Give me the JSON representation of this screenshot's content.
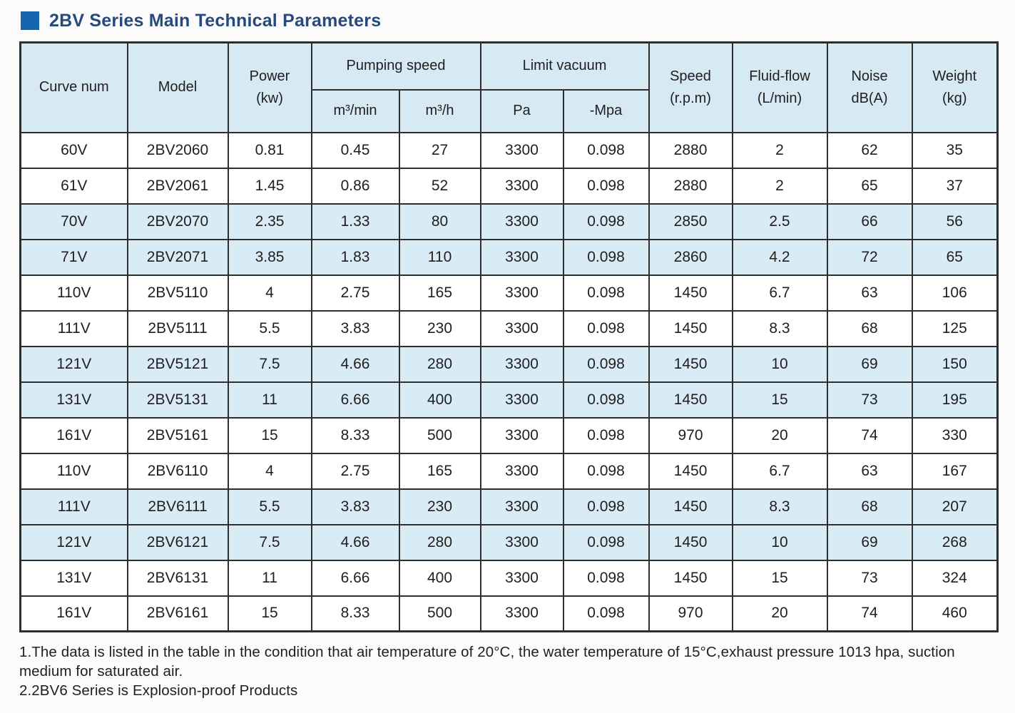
{
  "title": "2BV Series Main Technical Parameters",
  "colors": {
    "title_text": "#27497c",
    "title_bullet": "#1566ae",
    "header_fill": "#d7e9f3",
    "stripe_fill": "#d9ebf5",
    "border": "#2e2e2e"
  },
  "table": {
    "headers": {
      "curve_num": "Curve num",
      "model": "Model",
      "power_l1": "Power",
      "power_l2": "(kw)",
      "pumping_speed": "Pumping speed",
      "unit_m3min": "m³/min",
      "unit_m3h": "m³/h",
      "limit_vacuum": "Limit vacuum",
      "unit_pa": "Pa",
      "unit_mpa": "-Mpa",
      "speed_l1": "Speed",
      "speed_l2": "(r.p.m)",
      "fluid_l1": "Fluid-flow",
      "fluid_l2": "(L/min)",
      "noise_l1": "Noise",
      "noise_l2": "dB(A)",
      "weight_l1": "Weight",
      "weight_l2": "(kg)"
    },
    "rows": [
      [
        "60V",
        "2BV2060",
        "0.81",
        "0.45",
        "27",
        "3300",
        "0.098",
        "2880",
        "2",
        "62",
        "35"
      ],
      [
        "61V",
        "2BV2061",
        "1.45",
        "0.86",
        "52",
        "3300",
        "0.098",
        "2880",
        "2",
        "65",
        "37"
      ],
      [
        "70V",
        "2BV2070",
        "2.35",
        "1.33",
        "80",
        "3300",
        "0.098",
        "2850",
        "2.5",
        "66",
        "56"
      ],
      [
        "71V",
        "2BV2071",
        "3.85",
        "1.83",
        "110",
        "3300",
        "0.098",
        "2860",
        "4.2",
        "72",
        "65"
      ],
      [
        "110V",
        "2BV5110",
        "4",
        "2.75",
        "165",
        "3300",
        "0.098",
        "1450",
        "6.7",
        "63",
        "106"
      ],
      [
        "111V",
        "2BV5111",
        "5.5",
        "3.83",
        "230",
        "3300",
        "0.098",
        "1450",
        "8.3",
        "68",
        "125"
      ],
      [
        "121V",
        "2BV5121",
        "7.5",
        "4.66",
        "280",
        "3300",
        "0.098",
        "1450",
        "10",
        "69",
        "150"
      ],
      [
        "131V",
        "2BV5131",
        "11",
        "6.66",
        "400",
        "3300",
        "0.098",
        "1450",
        "15",
        "73",
        "195"
      ],
      [
        "161V",
        "2BV5161",
        "15",
        "8.33",
        "500",
        "3300",
        "0.098",
        "970",
        "20",
        "74",
        "330"
      ],
      [
        "110V",
        "2BV6110",
        "4",
        "2.75",
        "165",
        "3300",
        "0.098",
        "1450",
        "6.7",
        "63",
        "167"
      ],
      [
        "111V",
        "2BV6111",
        "5.5",
        "3.83",
        "230",
        "3300",
        "0.098",
        "1450",
        "8.3",
        "68",
        "207"
      ],
      [
        "121V",
        "2BV6121",
        "7.5",
        "4.66",
        "280",
        "3300",
        "0.098",
        "1450",
        "10",
        "69",
        "268"
      ],
      [
        "131V",
        "2BV6131",
        "11",
        "6.66",
        "400",
        "3300",
        "0.098",
        "1450",
        "15",
        "73",
        "324"
      ],
      [
        "161V",
        "2BV6161",
        "15",
        "8.33",
        "500",
        "3300",
        "0.098",
        "970",
        "20",
        "74",
        "460"
      ]
    ],
    "striped_row_indexes": [
      2,
      3,
      6,
      7,
      10,
      11
    ],
    "column_keys": [
      "curve-num",
      "model",
      "power",
      "pumping-m3min",
      "pumping-m3h",
      "vacuum-pa",
      "vacuum-mpa",
      "speed",
      "fluid-flow",
      "noise",
      "weight"
    ]
  },
  "notes": [
    "1.The data is listed in the table in the condition that air temperature of 20°C, the water temperature of 15°C,exhaust pressure  1013 hpa, suction medium for saturated air.",
    "2.2BV6 Series is Explosion-proof Products"
  ]
}
